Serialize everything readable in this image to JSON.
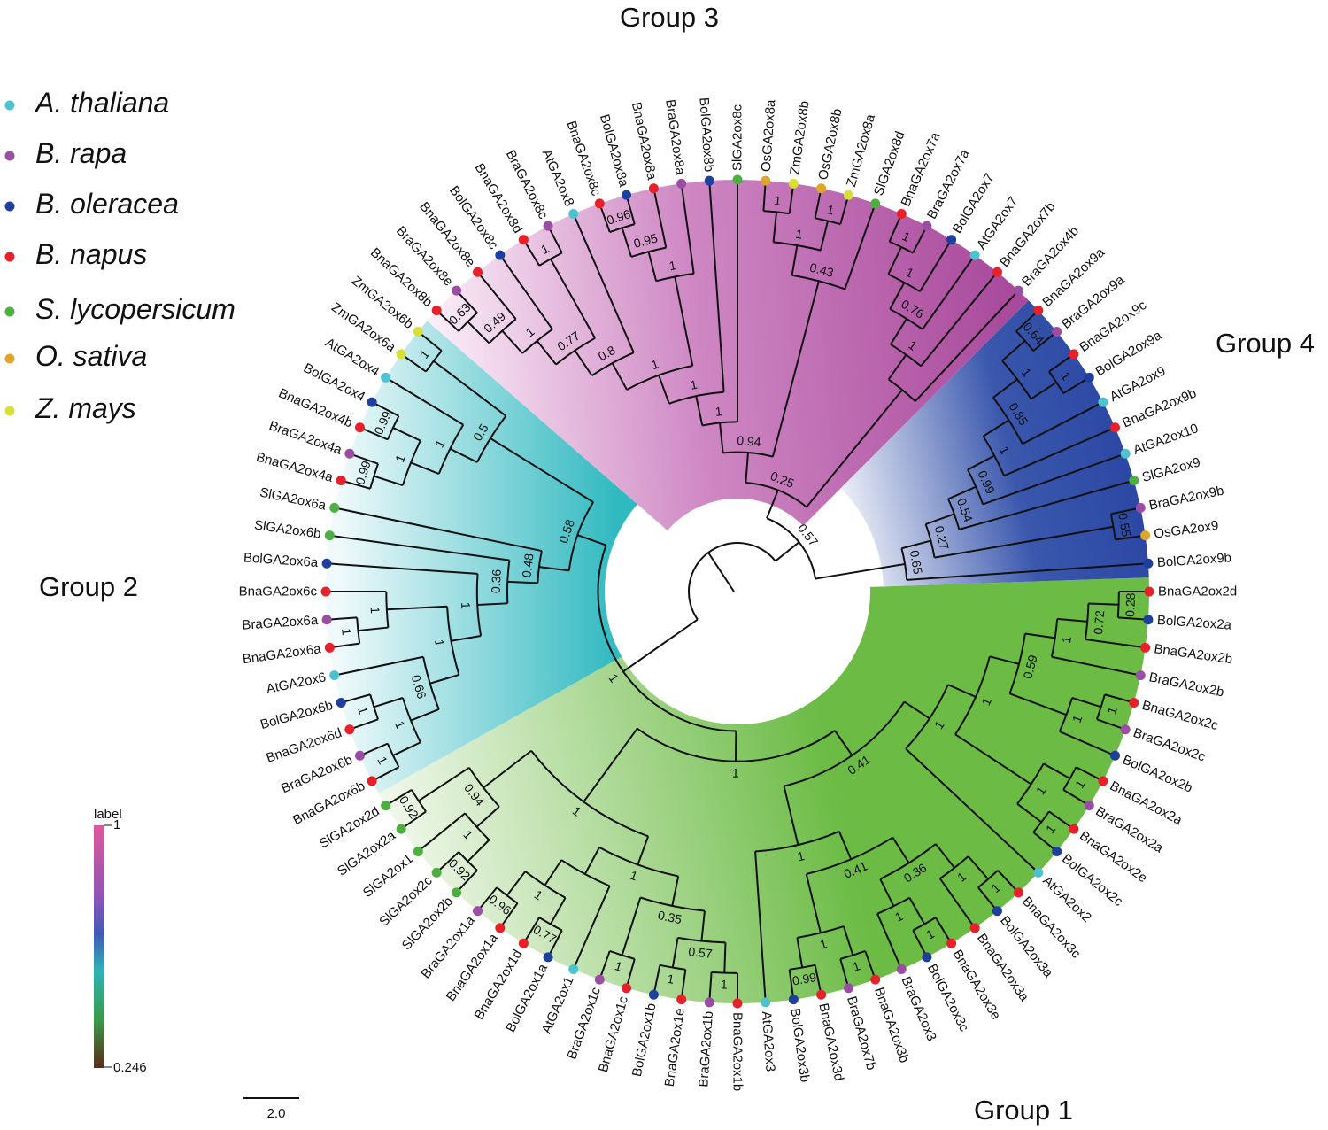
{
  "legend": {
    "items": [
      {
        "label": "A. thaliana",
        "color": "#4cc3cf"
      },
      {
        "label": "B. rapa",
        "color": "#9b4da6"
      },
      {
        "label": "B. oleracea",
        "color": "#1f3f9e"
      },
      {
        "label": "B. napus",
        "color": "#e8202a"
      },
      {
        "label": "S. lycopersicum",
        "color": "#4caf3f"
      },
      {
        "label": "O. sativa",
        "color": "#e0a52a"
      },
      {
        "label": "Z. mays",
        "color": "#d8e034"
      }
    ]
  },
  "groups": [
    {
      "label": "Group 1",
      "color": "#6bbb44",
      "light": "#f1f8ec"
    },
    {
      "label": "Group 2",
      "color": "#2fb9c0",
      "light": "#f1fafb"
    },
    {
      "label": "Group 3",
      "color": "#a94a9c",
      "light": "#f9ecf6"
    },
    {
      "label": "Group 4",
      "color": "#2a46a3",
      "light": "#ffffff"
    }
  ],
  "colorbar": {
    "title": "label",
    "max": "1",
    "min": "0.246"
  },
  "scale_bar": {
    "label": "2.0"
  },
  "tree": {
    "s": "",
    "c": [
      {
        "s": "1",
        "c": [
          {
            "s": "1",
            "c": [
              {
                "s": "0.41",
                "c": [
                  {
                    "s": "1",
                    "c": [
                      {
                        "s": "1",
                        "c": [
                          {
                            "s": "0.59",
                            "c": [
                              {
                                "s": "1",
                                "c": [
                                  {
                                    "s": "0.72",
                                    "c": [
                                      {
                                        "s": "0.28",
                                        "c": [
                                          "BnaGA2ox2d",
                                          "BolGA2ox2a"
                                        ]
                                      },
                                      "BnaGA2ox2b"
                                    ]
                                  },
                                  "BraGA2ox2b"
                                ]
                              },
                              {
                                "s": "1",
                                "c": [
                                  {
                                    "s": "1",
                                    "c": [
                                      "BnaGA2ox2c",
                                      "BraGA2ox2c"
                                    ]
                                  },
                                  "BolGA2ox2b"
                                ]
                              }
                            ]
                          },
                          {
                            "s": "1",
                            "c": [
                              {
                                "s": "1",
                                "c": [
                                  "BnaGA2ox2a",
                                  "BraGA2ox2a"
                                ]
                              },
                              {
                                "s": "1",
                                "c": [
                                  "BnaGA2ox2e",
                                  "BolGA2ox2c"
                                ]
                              }
                            ]
                          }
                        ]
                      },
                      "AtGA2ox2"
                    ]
                  },
                  {
                    "s": "1",
                    "c": [
                      {
                        "s": "0.41",
                        "c": [
                          {
                            "s": "0.36",
                            "c": [
                              {
                                "s": "1",
                                "c": [
                                  {
                                    "s": "1",
                                    "c": [
                                      "BnaGA2ox3c",
                                      "BolGA2ox3a"
                                    ]
                                  },
                                  "BnaGA2ox3a"
                                ]
                              },
                              {
                                "s": "1",
                                "c": [
                                  {
                                    "s": "1",
                                    "c": [
                                      "BnaGA2ox3e",
                                      "BolGA2ox3c"
                                    ]
                                  },
                                  "BraGA2ox3"
                                ]
                              }
                            ]
                          },
                          {
                            "s": "1",
                            "c": [
                              {
                                "s": "1",
                                "c": [
                                  "BnaGA2ox3b",
                                  "BraGA2ox7b"
                                ]
                              },
                              {
                                "s": "0.99",
                                "c": [
                                  "BnaGA2ox3d",
                                  "BolGA2ox3b"
                                ]
                              }
                            ]
                          }
                        ]
                      },
                      "AtGA2ox3"
                    ]
                  }
                ]
              },
              {
                "s": "1",
                "c": [
                  {
                    "s": "1",
                    "c": [
                      {
                        "s": "0.35",
                        "c": [
                          {
                            "s": "0.57",
                            "c": [
                              {
                                "s": "1",
                                "c": [
                                  "BnaGA2ox1b",
                                  "BraGA2ox1b"
                                ]
                              },
                              {
                                "s": "1",
                                "c": [
                                  "BnaGA2ox1e",
                                  "BolGA2ox1b"
                                ]
                              }
                            ]
                          },
                          {
                            "s": "1",
                            "c": [
                              "BnaGA2ox1c",
                              "BraGA2ox1c"
                            ]
                          }
                        ]
                      },
                      {
                        "s": "",
                        "c": [
                          "AtGA2ox1",
                          {
                            "s": "1",
                            "c": [
                              {
                                "s": "0.77",
                                "c": [
                                  "BolGA2ox1a",
                                  "BnaGA2ox1d"
                                ]
                              },
                              {
                                "s": "0.96",
                                "c": [
                                  "BnaGA2ox1a",
                                  "BraGA2ox1a"
                                ]
                              }
                            ]
                          }
                        ]
                      }
                    ]
                  },
                  {
                    "s": "0.94",
                    "c": [
                      {
                        "s": "1",
                        "c": [
                          {
                            "s": "0.92",
                            "c": [
                              "SlGA2ox2b",
                              "SlGA2ox2c"
                            ]
                          },
                          "SlGA2ox1"
                        ]
                      },
                      {
                        "s": "0.92",
                        "c": [
                          "SlGA2ox2a",
                          "SlGA2ox2d"
                        ]
                      }
                    ]
                  }
                ]
              }
            ]
          },
          {
            "s": "0.58",
            "c": [
              {
                "s": "0.48",
                "c": [
                  {
                    "s": "0.36",
                    "c": [
                      {
                        "s": "1",
                        "c": [
                          {
                            "s": "1",
                            "c": [
                              {
                                "s": "0.66",
                                "c": [
                                  {
                                    "s": "1",
                                    "c": [
                                      {
                                        "s": "1",
                                        "c": [
                                          "BnaGA2ox6b",
                                          "BraGA2ox6b"
                                        ]
                                      },
                                      {
                                        "s": "1",
                                        "c": [
                                          "BnaGA2ox6d",
                                          "BolGA2ox6b"
                                        ]
                                      }
                                    ]
                                  },
                                  "AtGA2ox6"
                                ]
                              },
                              {
                                "s": "1",
                                "c": [
                                  {
                                    "s": "1",
                                    "c": [
                                      "BnaGA2ox6a",
                                      "BraGA2ox6a"
                                    ]
                                  },
                                  "BnaGA2ox6c"
                                ]
                              }
                            ]
                          },
                          "BolGA2ox6a"
                        ]
                      },
                      "SlGA2ox6b"
                    ]
                  },
                  "SlGA2ox6a"
                ]
              },
              {
                "s": "0.5",
                "c": [
                  {
                    "s": "1",
                    "c": [
                      {
                        "s": "1",
                        "c": [
                          {
                            "s": "0.99",
                            "c": [
                              "BnaGA2ox4a",
                              "BraGA2ox4a"
                            ]
                          },
                          {
                            "s": "0.99",
                            "c": [
                              "BnaGA2ox4b",
                              "BolGA2ox4"
                            ]
                          }
                        ]
                      },
                      "AtGA2ox4"
                    ]
                  },
                  {
                    "s": "1",
                    "c": [
                      "ZmGA2ox6a",
                      "ZmGA2ox6b"
                    ]
                  }
                ]
              }
            ]
          }
        ]
      },
      {
        "s": "0.57",
        "c": [
          {
            "s": "0.25",
            "c": [
              {
                "s": "0.94",
                "c": [
                  {
                    "s": "1",
                    "c": [
                      {
                        "s": "1",
                        "c": [
                          {
                            "s": "1",
                            "c": [
                              {
                                "s": "0.8",
                                "c": [
                                  {
                                    "s": "0.77",
                                    "c": [
                                      {
                                        "s": "1",
                                        "c": [
                                          {
                                            "s": "0.49",
                                            "c": [
                                              {
                                                "s": "0.63",
                                                "c": [
                                                  "BnaGA2ox8b",
                                                  "BraGA2ox8e"
                                                ]
                                              },
                                              "BnaGA2ox8e"
                                            ]
                                          },
                                          "BolGA2ox8c"
                                        ]
                                      },
                                      {
                                        "s": "1",
                                        "c": [
                                          "BnaGA2ox8d",
                                          "BraGA2ox8c"
                                        ]
                                      }
                                    ]
                                  },
                                  "AtGA2ox8"
                                ]
                              },
                              {
                                "s": "1",
                                "c": [
                                  {
                                    "s": "0.95",
                                    "c": [
                                      {
                                        "s": "0.96",
                                        "c": [
                                          "BnaGA2ox8c",
                                          "BolGA2ox8a"
                                        ]
                                      },
                                      "BnaGA2ox8a"
                                    ]
                                  },
                                  "BraGA2ox8a"
                                ]
                              }
                            ]
                          },
                          "BolGA2ox8b"
                        ]
                      },
                      "SlGA2ox8c"
                    ]
                  },
                  {
                    "s": "0.43",
                    "c": [
                      {
                        "s": "1",
                        "c": [
                          {
                            "s": "1",
                            "c": [
                              "OsGA2ox8a",
                              "ZmGA2ox8b"
                            ]
                          },
                          {
                            "s": "1",
                            "c": [
                              "OsGA2ox8b",
                              "ZmGA2ox8a"
                            ]
                          }
                        ]
                      },
                      "SlGA2ox8d"
                    ]
                  }
                ]
              },
              {
                "s": "",
                "c": [
                  {
                    "s": "1",
                    "c": [
                      {
                        "s": "0.76",
                        "c": [
                          {
                            "s": "1",
                            "c": [
                              {
                                "s": "1",
                                "c": [
                                  "BnaGA2ox7a",
                                  "BraGA2ox7a"
                                ]
                              },
                              "BolGA2ox7"
                            ]
                          },
                          "AtGA2ox7"
                        ]
                      },
                      "BnaGA2ox7b"
                    ]
                  },
                  "BraGA2ox4b"
                ]
              }
            ]
          },
          {
            "s": "0.65",
            "c": [
              {
                "s": "0.27",
                "c": [
                  {
                    "s": "0.54",
                    "c": [
                      {
                        "s": "0.99",
                        "c": [
                          {
                            "s": "1",
                            "c": [
                              {
                                "s": "0.85",
                                "c": [
                                  {
                                    "s": "1",
                                    "c": [
                                      {
                                        "s": "0.64",
                                        "c": [
                                          "BnaGA2ox9a",
                                          "BraGA2ox9a"
                                        ]
                                      },
                                      {
                                        "s": "1",
                                        "c": [
                                          "BnaGA2ox9c",
                                          "BolGA2ox9a"
                                        ]
                                      }
                                    ]
                                  },
                                  "AtGA2ox9"
                                ]
                              },
                              "BnaGA2ox9b"
                            ]
                          },
                          "AtGA2ox10"
                        ]
                      },
                      "SlGA2ox9"
                    ]
                  },
                  {
                    "s": "0.55",
                    "c": [
                      "BraGA2ox9b",
                      "OsGA2ox9"
                    ]
                  }
                ]
              },
              "BolGA2ox9b"
            ]
          }
        ]
      }
    ]
  }
}
